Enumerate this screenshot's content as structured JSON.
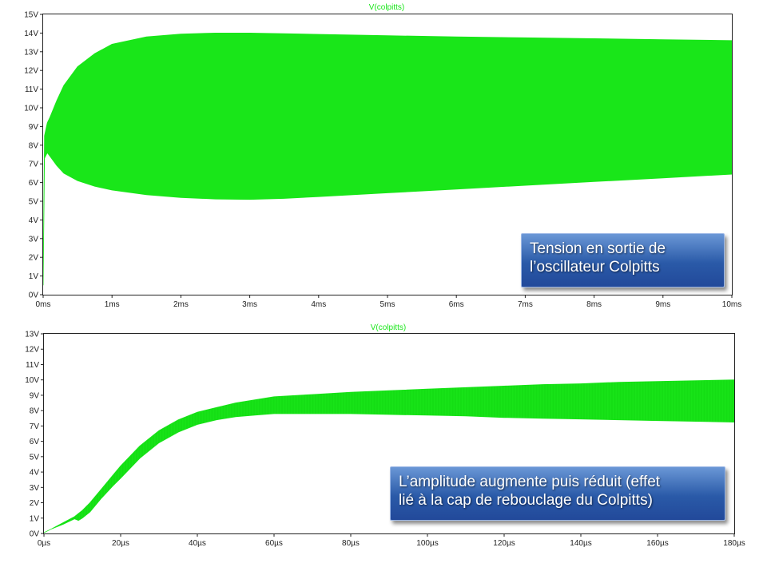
{
  "chart_data": [
    {
      "type": "line",
      "title": "V(colpitts)",
      "xunit": "ms",
      "yunit": "V",
      "xlim": [
        0,
        10
      ],
      "ylim": [
        0,
        15
      ],
      "xticks": [
        "0ms",
        "1ms",
        "2ms",
        "3ms",
        "4ms",
        "5ms",
        "6ms",
        "7ms",
        "8ms",
        "9ms",
        "10ms"
      ],
      "yticks": [
        "0V",
        "1V",
        "2V",
        "3V",
        "4V",
        "5V",
        "6V",
        "7V",
        "8V",
        "9V",
        "10V",
        "11V",
        "12V",
        "13V",
        "14V",
        "15V"
      ],
      "line_color": "#19e619",
      "grid": false,
      "envelope": {
        "x": [
          0,
          0.02,
          0.06,
          0.1,
          0.2,
          0.3,
          0.5,
          0.75,
          1.0,
          1.5,
          2.0,
          2.5,
          3.0,
          3.5,
          4.0,
          5.0,
          6.0,
          7.0,
          8.0,
          9.0,
          10.0
        ],
        "upper": [
          0.5,
          8.5,
          9.2,
          9.5,
          10.4,
          11.2,
          12.2,
          12.9,
          13.4,
          13.8,
          13.95,
          14.0,
          14.0,
          13.97,
          13.93,
          13.86,
          13.8,
          13.75,
          13.7,
          13.65,
          13.6
        ],
        "lower": [
          0.5,
          7.3,
          7.6,
          7.4,
          6.9,
          6.5,
          6.1,
          5.8,
          5.6,
          5.35,
          5.2,
          5.12,
          5.1,
          5.15,
          5.25,
          5.45,
          5.65,
          5.85,
          6.05,
          6.25,
          6.45
        ]
      },
      "annotation": {
        "lines": [
          "Tension en sortie de",
          "l’oscillateur Colpitts"
        ],
        "bg": "#2a5aa8"
      }
    },
    {
      "type": "line",
      "title": "V(colpitts)",
      "xunit": "µs",
      "yunit": "V",
      "xlim": [
        0,
        180
      ],
      "ylim": [
        0,
        13
      ],
      "xticks": [
        "0µs",
        "20µs",
        "40µs",
        "60µs",
        "80µs",
        "100µs",
        "120µs",
        "140µs",
        "160µs",
        "180µs"
      ],
      "yticks": [
        "0V",
        "1V",
        "2V",
        "3V",
        "4V",
        "5V",
        "6V",
        "7V",
        "8V",
        "9V",
        "10V",
        "11V",
        "12V",
        "13V"
      ],
      "line_color": "#19e619",
      "grid": false,
      "envelope": {
        "x": [
          0,
          2,
          5,
          8,
          9,
          10,
          12,
          15,
          18,
          20,
          25,
          30,
          35,
          40,
          45,
          50,
          55,
          60,
          70,
          80,
          90,
          100,
          110,
          120,
          130,
          140,
          150,
          160,
          170,
          180
        ],
        "upper": [
          0.05,
          0.3,
          0.7,
          1.1,
          1.3,
          1.5,
          2.0,
          2.9,
          3.8,
          4.4,
          5.7,
          6.7,
          7.4,
          7.9,
          8.2,
          8.5,
          8.7,
          8.9,
          9.05,
          9.2,
          9.3,
          9.4,
          9.5,
          9.6,
          9.7,
          9.75,
          9.85,
          9.9,
          9.95,
          10.0
        ],
        "lower": [
          0.05,
          0.3,
          0.6,
          0.95,
          0.85,
          1.0,
          1.4,
          2.3,
          3.1,
          3.6,
          4.9,
          5.9,
          6.6,
          7.1,
          7.4,
          7.6,
          7.7,
          7.8,
          7.8,
          7.8,
          7.75,
          7.7,
          7.65,
          7.55,
          7.5,
          7.45,
          7.4,
          7.35,
          7.3,
          7.25
        ]
      },
      "annotation": {
        "lines": [
          "L’amplitude augmente puis réduit (effet",
          "lié à la cap de rebouclage du Colpitts)"
        ],
        "bg": "#2a5aa8"
      }
    }
  ]
}
